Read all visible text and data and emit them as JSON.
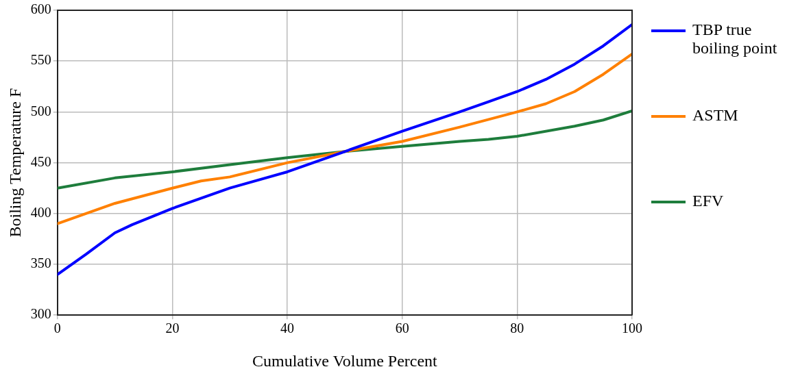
{
  "chart_data": {
    "type": "line",
    "xlabel": "Cumulative Volume Percent",
    "ylabel": "Boiling Temperature F",
    "xlim": [
      0,
      100
    ],
    "xticks": [
      0,
      20,
      40,
      60,
      80,
      100
    ],
    "ylim": [
      300,
      600
    ],
    "yticks": [
      300,
      350,
      400,
      450,
      500,
      550,
      600
    ],
    "grid": true,
    "legend": "right",
    "marker": "none",
    "line_style": "solid",
    "series": [
      {
        "name": "TBP true boiling point",
        "color": "#0000ff",
        "x": [
          0,
          5,
          10,
          13,
          20,
          30,
          40,
          50,
          60,
          70,
          75,
          80,
          85,
          90,
          95,
          100
        ],
        "values": [
          340,
          360,
          381,
          389,
          405,
          425,
          441,
          461,
          481,
          500,
          510,
          520,
          532,
          547,
          565,
          586
        ]
      },
      {
        "name": "ASTM",
        "color": "#ff8000",
        "x": [
          0,
          10,
          20,
          25,
          30,
          40,
          50,
          60,
          70,
          80,
          85,
          90,
          95,
          100
        ],
        "values": [
          390,
          410,
          425,
          432,
          436,
          450,
          461,
          471,
          485,
          500,
          508,
          520,
          537,
          557
        ]
      },
      {
        "name": "EFV",
        "color": "#1e7d3c",
        "x": [
          0,
          10,
          20,
          30,
          40,
          50,
          60,
          70,
          75,
          80,
          90,
          95,
          100
        ],
        "values": [
          425,
          435,
          441,
          448,
          455,
          461,
          466,
          471,
          473,
          476,
          486,
          492,
          501
        ]
      }
    ]
  }
}
